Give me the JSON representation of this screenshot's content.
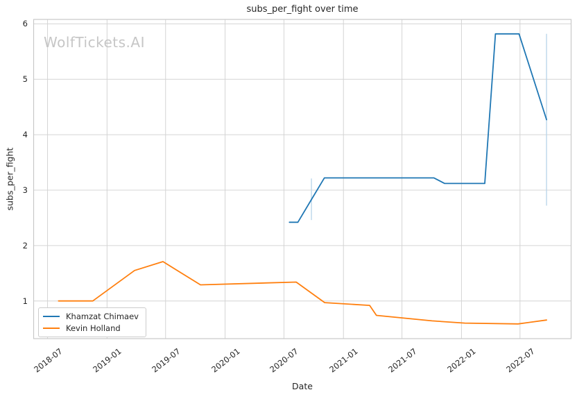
{
  "watermark": "WolfTickets.AI",
  "colors": {
    "background": "#ffffff",
    "grid": "#d4d4d4",
    "frame": "#c8c8c8",
    "text": "#262626",
    "watermark": "#c6c6c6",
    "series_blue": "#1f77b4",
    "series_orange": "#ff7f0e",
    "error_bar": "#b7d4ea"
  },
  "chart_data": {
    "type": "line",
    "title": "subs_per_fight over time",
    "xlabel": "Date",
    "ylabel": "subs_per_fight",
    "grid": true,
    "legend_position": "lower left",
    "x_axis": {
      "min": "2018-05-19",
      "max": "2022-12-06",
      "ticks": [
        "2018-07-01",
        "2019-01-01",
        "2019-07-01",
        "2020-01-01",
        "2020-07-01",
        "2021-01-01",
        "2021-07-01",
        "2022-01-01",
        "2022-07-01"
      ],
      "tick_labels": [
        "2018-07",
        "2019-01",
        "2019-07",
        "2020-01",
        "2020-07",
        "2021-01",
        "2021-07",
        "2022-01",
        "2022-07"
      ]
    },
    "y_axis": {
      "min": 0.32,
      "max": 6.08,
      "ticks": [
        1,
        2,
        3,
        4,
        5,
        6
      ]
    },
    "series": [
      {
        "name": "Khamzat Chimaev",
        "color": "#1f77b4",
        "points": [
          [
            "2020-07-18",
            2.42
          ],
          [
            "2020-08-13",
            2.42
          ],
          [
            "2020-09-24",
            2.83
          ],
          [
            "2020-11-03",
            3.22
          ],
          [
            "2021-10-08",
            3.22
          ],
          [
            "2021-11-10",
            3.12
          ],
          [
            "2022-03-14",
            3.12
          ],
          [
            "2022-04-16",
            5.82
          ],
          [
            "2022-06-28",
            5.82
          ],
          [
            "2022-09-21",
            4.27
          ]
        ]
      },
      {
        "name": "Kevin Holland",
        "color": "#ff7f0e",
        "points": [
          [
            "2018-08-04",
            1.0
          ],
          [
            "2018-11-18",
            1.0
          ],
          [
            "2019-03-27",
            1.55
          ],
          [
            "2019-06-23",
            1.71
          ],
          [
            "2019-10-17",
            1.29
          ],
          [
            "2020-08-08",
            1.34
          ],
          [
            "2020-11-04",
            0.97
          ],
          [
            "2021-03-23",
            0.92
          ],
          [
            "2021-04-13",
            0.74
          ],
          [
            "2021-10-02",
            0.64
          ],
          [
            "2022-01-11",
            0.6
          ],
          [
            "2022-06-25",
            0.585
          ],
          [
            "2022-09-21",
            0.655
          ]
        ]
      }
    ],
    "error_bars": [
      {
        "series": "Khamzat Chimaev",
        "date": "2020-09-24",
        "low": 2.46,
        "high": 3.21
      },
      {
        "series": "Khamzat Chimaev",
        "date": "2022-09-21",
        "low": 2.72,
        "high": 5.82
      }
    ]
  }
}
